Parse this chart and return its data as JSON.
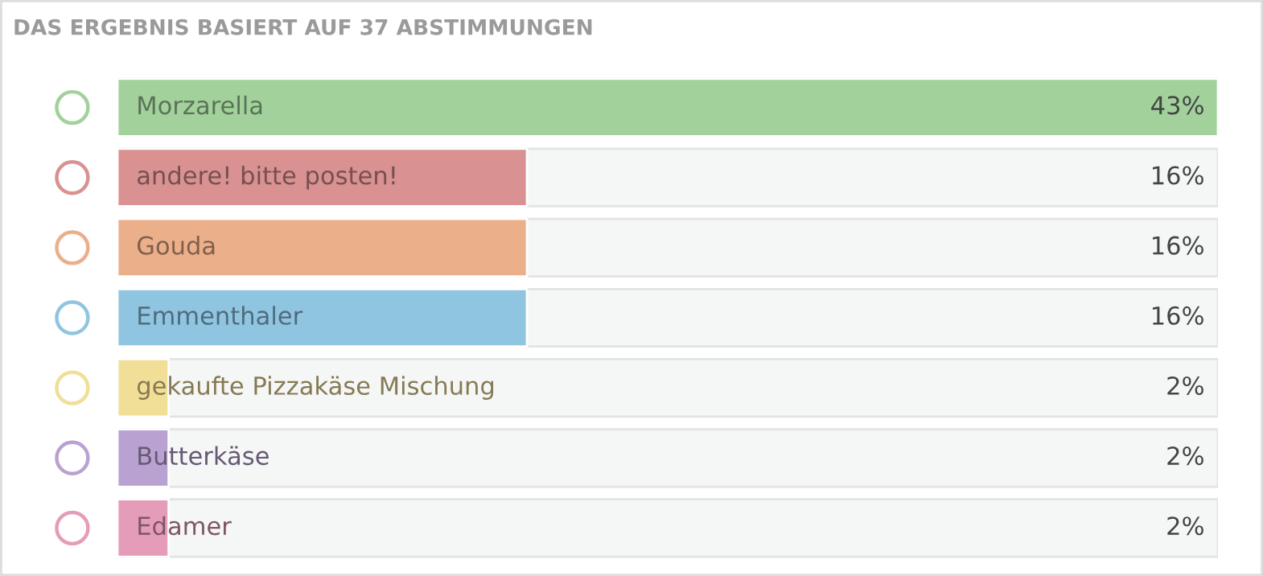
{
  "chart_data": {
    "type": "bar",
    "orientation": "horizontal",
    "title": "DAS ERGEBNIS BASIERT AUF 37 ABSTIMMUNGEN",
    "categories": [
      "Morzarella",
      "andere! bitte posten!",
      "Gouda",
      "Emmenthaler",
      "gekaufte Pizzakäse Mischung",
      "Butterkäse",
      "Edamer"
    ],
    "values": [
      43,
      16,
      16,
      16,
      2,
      2,
      2
    ],
    "value_labels": [
      "43%",
      "16%",
      "16%",
      "16%",
      "2%",
      "2%",
      "2%"
    ],
    "colors": [
      "#a2d19c",
      "#d99191",
      "#ebaf8a",
      "#90c5e1",
      "#f1de97",
      "#b9a1d1",
      "#e59cb9"
    ]
  }
}
